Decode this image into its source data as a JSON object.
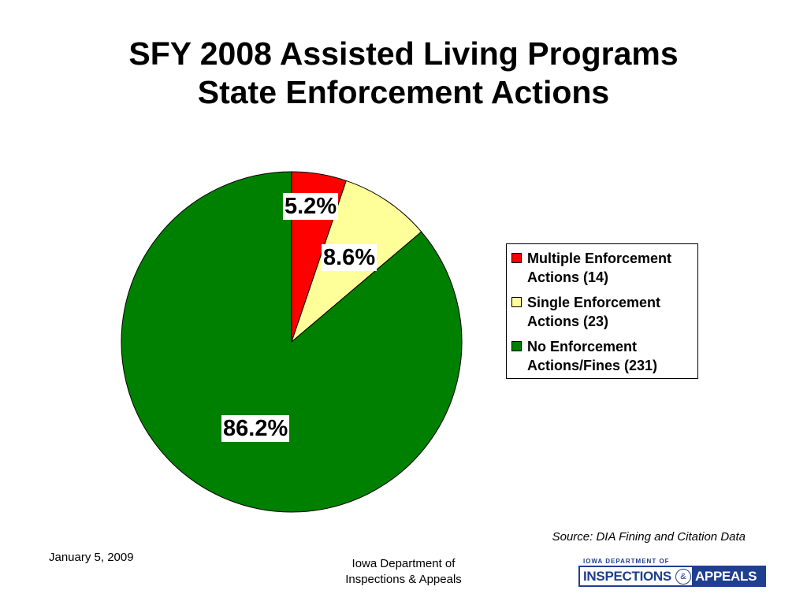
{
  "header": {
    "title_line1": "SFY 2008 Assisted Living Programs",
    "title_line2": "State Enforcement Actions"
  },
  "chart_data": {
    "type": "pie",
    "title": "SFY 2008 Assisted Living Programs State Enforcement Actions",
    "categories": [
      "Multiple Enforcement Actions (14)",
      "Single Enforcement Actions (23)",
      "No Enforcement Actions/Fines (231)"
    ],
    "values": [
      5.2,
      8.6,
      86.2
    ],
    "counts": [
      14,
      23,
      231
    ],
    "data_labels": [
      "5.2%",
      "8.6%",
      "86.2%"
    ],
    "colors": [
      "#ff0000",
      "#ffff99",
      "#008000"
    ],
    "legend": {
      "placement": "right",
      "items": [
        {
          "line1": "Multiple Enforcement",
          "line2": "Actions (14)"
        },
        {
          "line1": "Single Enforcement",
          "line2": "Actions (23)"
        },
        {
          "line1": "No Enforcement",
          "line2": "Actions/Fines (231)"
        }
      ]
    }
  },
  "footer": {
    "source": "Source:  DIA Fining and Citation Data",
    "date": "January 5, 2009",
    "dept_line1": "Iowa Department of",
    "dept_line2": "Inspections & Appeals"
  },
  "logo": {
    "top_text": "IOWA DEPARTMENT OF",
    "left_text": "INSPECTIONS",
    "amp": "&",
    "right_text": "APPEALS"
  }
}
